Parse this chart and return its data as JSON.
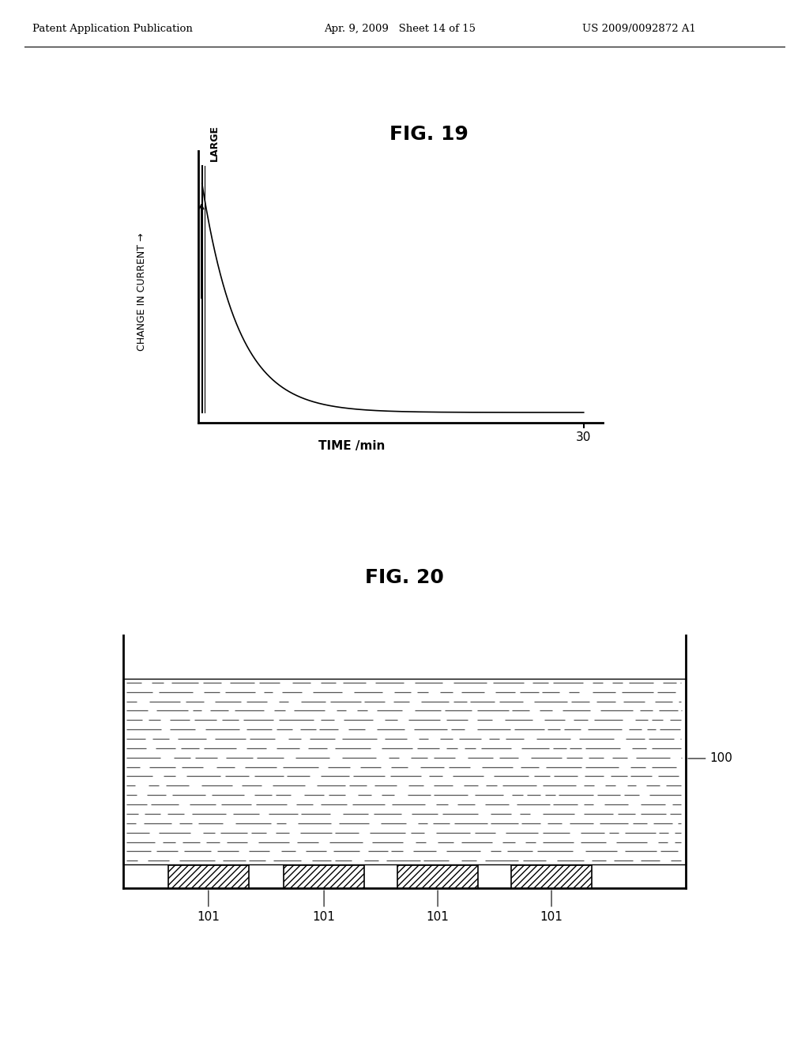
{
  "header_left": "Patent Application Publication",
  "header_mid": "Apr. 9, 2009   Sheet 14 of 15",
  "header_right": "US 2009/0092872 A1",
  "fig19_title": "FIG. 19",
  "fig20_title": "FIG. 20",
  "ylabel19": "CHANGE IN CURRENT",
  "ylabel19_arrow": "LARGE",
  "xlabel19": "TIME /min",
  "tick30": "30",
  "label100": "100",
  "label101": "101",
  "background": "#ffffff",
  "fg_color": "#000000"
}
